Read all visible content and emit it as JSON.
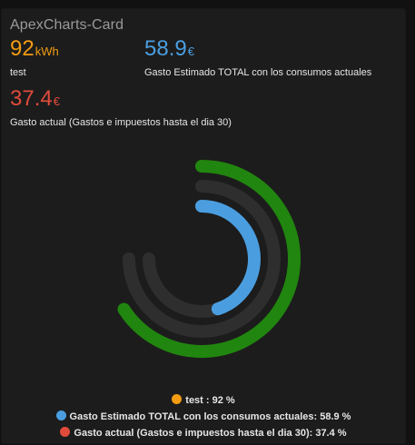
{
  "card": {
    "title": "ApexCharts-Card"
  },
  "header": [
    {
      "value": "92",
      "unit": "kWh",
      "label": "test",
      "color": "#f39c12"
    },
    {
      "value": "58.9",
      "unit": "€",
      "label": "Gasto Estimado TOTAL con los consumos actuales",
      "color": "#4a9ee0"
    },
    {
      "value": "37.4",
      "unit": "€",
      "label": "Gasto actual (Gastos e impuestos hasta el dia 30)",
      "color": "#e04b3c"
    }
  ],
  "chart_data": {
    "type": "radialBar",
    "start_angle_deg": -180,
    "end_angle_deg": 180,
    "track_color": "#2e2e2e",
    "series": [
      {
        "name": "test",
        "value": 92,
        "unit": "%",
        "color": "#f39c12"
      },
      {
        "name": "Gasto Estimado TOTAL con los consumos actuales",
        "value": 58.9,
        "unit": "%",
        "color": "#4a9ee0"
      },
      {
        "name": "Gasto actual (Gastos e impuestos hasta el dia 30)",
        "value": 37.4,
        "unit": "%",
        "color": "#e04b3c"
      }
    ],
    "outer_ring": {
      "value": 70,
      "color": "#21860f"
    }
  },
  "legend": [
    {
      "text": "test : 92 %",
      "color": "#f39c12"
    },
    {
      "text": "Gasto Estimado TOTAL con los consumos actuales: 58.9 %",
      "color": "#4a9ee0"
    },
    {
      "text": "Gasto actual (Gastos e impuestos hasta el dia 30): 37.4 %",
      "color": "#e04b3c"
    }
  ]
}
